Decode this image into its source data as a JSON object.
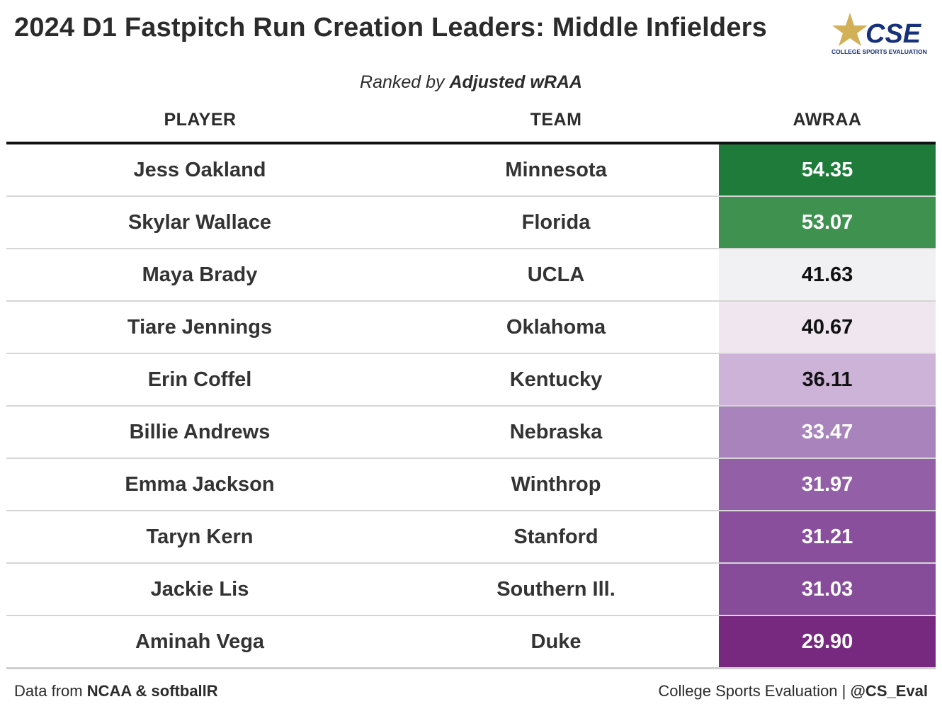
{
  "header": {
    "title": "2024 D1 Fastpitch Run Creation Leaders: Middle Infielders",
    "subtitle_prefix": "Ranked by ",
    "subtitle_bold": "Adjusted wRAA"
  },
  "logo": {
    "text": "CSE",
    "tagline": "COLLEGE SPORTS EVALUATION",
    "icon": "star-icon"
  },
  "columns": {
    "player": "PLAYER",
    "team": "TEAM",
    "value": "AWRAA"
  },
  "chart_data": {
    "type": "table",
    "title": "2024 D1 Fastpitch Run Creation Leaders: Middle Infielders",
    "subtitle": "Ranked by Adjusted wRAA",
    "columns": [
      "PLAYER",
      "TEAM",
      "AWRAA"
    ],
    "rows": [
      {
        "player": "Jess Oakland",
        "team": "Minnesota",
        "value": "54.35",
        "fill": "#1e7b3a",
        "text_color": "#ffffff"
      },
      {
        "player": "Skylar Wallace",
        "team": "Florida",
        "value": "53.07",
        "fill": "#3f9150",
        "text_color": "#ffffff"
      },
      {
        "player": "Maya Brady",
        "team": "UCLA",
        "value": "41.63",
        "fill": "#f1f0f2",
        "text_color": "#111111"
      },
      {
        "player": "Tiare Jennings",
        "team": "Oklahoma",
        "value": "40.67",
        "fill": "#efe6ef",
        "text_color": "#111111"
      },
      {
        "player": "Erin Coffel",
        "team": "Kentucky",
        "value": "36.11",
        "fill": "#ccb3d7",
        "text_color": "#111111"
      },
      {
        "player": "Billie Andrews",
        "team": "Nebraska",
        "value": "33.47",
        "fill": "#a984bc",
        "text_color": "#ffffff"
      },
      {
        "player": "Emma Jackson",
        "team": "Winthrop",
        "value": "31.97",
        "fill": "#935fa6",
        "text_color": "#ffffff"
      },
      {
        "player": "Taryn Kern",
        "team": "Stanford",
        "value": "31.21",
        "fill": "#8a4f9c",
        "text_color": "#ffffff"
      },
      {
        "player": "Jackie Lis",
        "team": "Southern Ill.",
        "value": "31.03",
        "fill": "#874c99",
        "text_color": "#ffffff"
      },
      {
        "player": "Aminah Vega",
        "team": "Duke",
        "value": "29.90",
        "fill": "#77287f",
        "text_color": "#ffffff"
      }
    ]
  },
  "footer": {
    "left_prefix": "Data from ",
    "left_bold": "NCAA & softballR",
    "right_prefix": "College Sports Evaluation | ",
    "right_bold": "@CS_Eval"
  }
}
